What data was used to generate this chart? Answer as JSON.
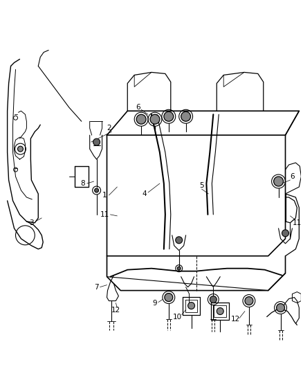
{
  "background_color": "#ffffff",
  "line_color": "#000000",
  "fig_width": 4.38,
  "fig_height": 5.33,
  "dpi": 100
}
